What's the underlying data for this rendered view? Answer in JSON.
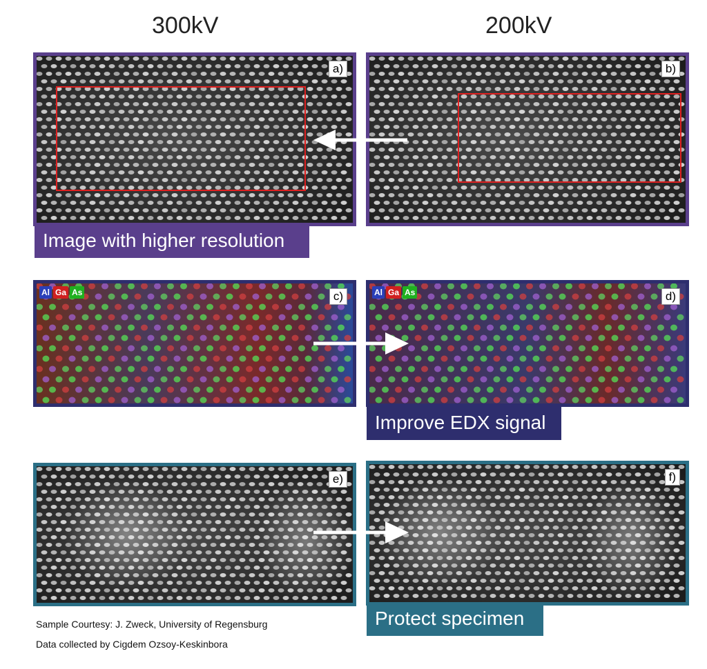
{
  "columns": {
    "left": "300kV",
    "right": "200kV"
  },
  "panels": {
    "a": "a)",
    "b": "b)",
    "c": "c)",
    "d": "d)",
    "e": "e)",
    "f": "f)"
  },
  "banners": {
    "resolution": "Image with higher resolution",
    "edx": "Improve EDX signal",
    "protect": "Protect specimen"
  },
  "legend": [
    {
      "symbol": "Al",
      "color": "#2a3fb8"
    },
    {
      "symbol": "Ga",
      "color": "#d02020"
    },
    {
      "symbol": "As",
      "color": "#20b020"
    }
  ],
  "credits": {
    "courtesy": "Sample Courtesy: J. Zweck, University of Regensburg",
    "collected": "Data collected by Cigdem Ozsoy-Keskinbora"
  },
  "colors": {
    "purple": "#5a3f8c",
    "navy": "#2e2e6e",
    "teal": "#2b6f86",
    "roi": "#e02020"
  }
}
